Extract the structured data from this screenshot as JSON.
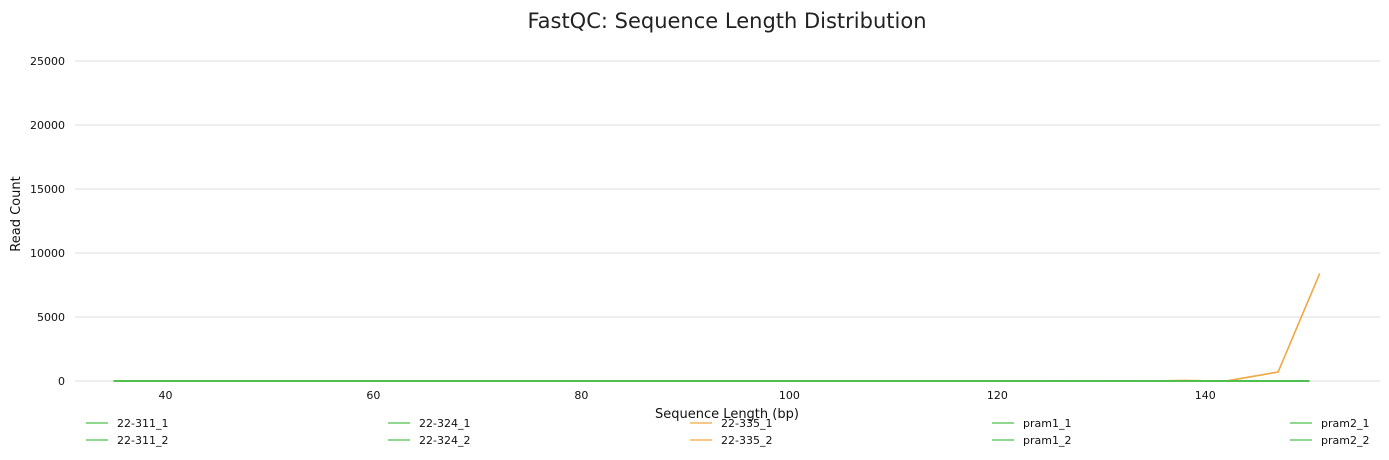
{
  "chart_data": {
    "type": "line",
    "title": "FastQC: Sequence Length Distribution",
    "xlabel": "Sequence Length (bp)",
    "ylabel": "Read Count",
    "xlim": [
      31.3,
      156.8
    ],
    "ylim": [
      0,
      25000
    ],
    "x_ticks": [
      "40",
      "60",
      "80",
      "100",
      "120",
      "140"
    ],
    "x_tick_values": [
      40,
      60,
      80,
      100,
      120,
      140
    ],
    "y_ticks": [
      "0",
      "5000",
      "10000",
      "15000",
      "20000",
      "25000"
    ],
    "y_tick_values": [
      0,
      5000,
      10000,
      15000,
      20000,
      25000
    ],
    "grid": "horizontal",
    "legend_position": "bottom",
    "series": [
      {
        "name": "22-311_1",
        "color": "#4dbf4d",
        "x": [
          35,
          150
        ],
        "y": [
          0,
          0
        ]
      },
      {
        "name": "22-311_2",
        "color": "#4dbf4d",
        "x": [
          35,
          150
        ],
        "y": [
          0,
          0
        ]
      },
      {
        "name": "22-324_1",
        "color": "#4dbf4d",
        "x": [
          35,
          150
        ],
        "y": [
          0,
          0
        ]
      },
      {
        "name": "22-324_2",
        "color": "#4dbf4d",
        "x": [
          35,
          150
        ],
        "y": [
          0,
          0
        ]
      },
      {
        "name": "22-335_1",
        "color": "#f0a946",
        "x": [
          35,
          125,
          128,
          132,
          135,
          138,
          142,
          147,
          151
        ],
        "y": [
          0,
          0,
          20,
          0,
          10,
          40,
          0,
          700,
          8400
        ]
      },
      {
        "name": "22-335_2",
        "color": "#f0a946",
        "x": [
          35,
          125,
          128,
          132,
          135,
          138,
          142,
          147,
          151
        ],
        "y": [
          0,
          0,
          20,
          0,
          10,
          40,
          0,
          700,
          8400
        ]
      },
      {
        "name": "pram1_1",
        "color": "#4dbf4d",
        "x": [
          35,
          150
        ],
        "y": [
          0,
          0
        ]
      },
      {
        "name": "pram1_2",
        "color": "#4dbf4d",
        "x": [
          35,
          150
        ],
        "y": [
          0,
          0
        ]
      },
      {
        "name": "pram2_1",
        "color": "#4dbf4d",
        "x": [
          35,
          150
        ],
        "y": [
          0,
          0
        ]
      },
      {
        "name": "pram2_2",
        "color": "#4dbf4d",
        "x": [
          35,
          150
        ],
        "y": [
          0,
          0
        ]
      }
    ]
  }
}
